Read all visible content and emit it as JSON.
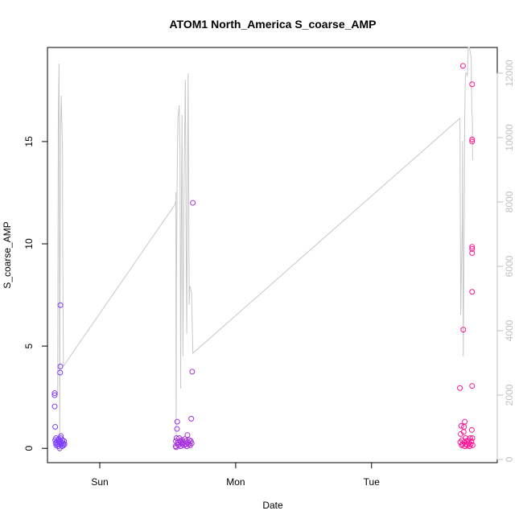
{
  "chart_data": {
    "type": "scatter",
    "title": "ATOM1 North_America S_coarse_AMP",
    "xlabel": "Date",
    "ylabel": "S_coarse_AMP",
    "x_tick_labels": [
      "Sun",
      "Mon",
      "Tue"
    ],
    "x_ticks_days": [
      1,
      2,
      3
    ],
    "xlim_days": [
      0.615,
      3.925
    ],
    "ylim": [
      -0.7,
      19.6
    ],
    "yticks": [
      0,
      5,
      10,
      15
    ],
    "y2lim": [
      -100,
      12800
    ],
    "y2ticks": [
      0,
      2000,
      4000,
      6000,
      8000,
      10000,
      12000
    ],
    "grid": false,
    "legend": "none",
    "colors": {
      "points_start": "#7f3fff",
      "points_end": "#ff1493",
      "line": "#c8c8c8",
      "secondary_axis": "#c0c0c0",
      "primary_axis": "#000000"
    },
    "points": [
      [
        0.668,
        2.6
      ],
      [
        0.668,
        2.7
      ],
      [
        0.668,
        2.05
      ],
      [
        0.672,
        1.05
      ],
      [
        0.672,
        0.4
      ],
      [
        0.675,
        0.25
      ],
      [
        0.678,
        0.5
      ],
      [
        0.68,
        0.15
      ],
      [
        0.685,
        0.3
      ],
      [
        0.688,
        0.2
      ],
      [
        0.692,
        0.4
      ],
      [
        0.695,
        0.1
      ],
      [
        0.698,
        0.45
      ],
      [
        0.7,
        0.3
      ],
      [
        0.702,
        0.2
      ],
      [
        0.705,
        0.0
      ],
      [
        0.708,
        3.7
      ],
      [
        0.708,
        0.35
      ],
      [
        0.71,
        4.0
      ],
      [
        0.71,
        7.0
      ],
      [
        0.712,
        0.5
      ],
      [
        0.714,
        0.6
      ],
      [
        0.716,
        0.2
      ],
      [
        0.72,
        0.3
      ],
      [
        0.723,
        0.1
      ],
      [
        0.726,
        0.4
      ],
      [
        0.73,
        0.25
      ],
      [
        0.733,
        0.15
      ],
      [
        0.737,
        0.35
      ],
      [
        0.74,
        0.2
      ],
      [
        1.558,
        0.1
      ],
      [
        1.56,
        0.35
      ],
      [
        1.562,
        0.05
      ],
      [
        1.565,
        0.5
      ],
      [
        1.568,
        0.95
      ],
      [
        1.57,
        1.3
      ],
      [
        1.573,
        0.2
      ],
      [
        1.576,
        0.3
      ],
      [
        1.58,
        0.15
      ],
      [
        1.585,
        0.5
      ],
      [
        1.59,
        0.35
      ],
      [
        1.595,
        0.1
      ],
      [
        1.6,
        0.25
      ],
      [
        1.605,
        0.4
      ],
      [
        1.61,
        0.2
      ],
      [
        1.615,
        0.3
      ],
      [
        1.62,
        0.15
      ],
      [
        1.625,
        0.45
      ],
      [
        1.63,
        0.35
      ],
      [
        1.635,
        0.2
      ],
      [
        1.64,
        0.1
      ],
      [
        1.645,
        0.65
      ],
      [
        1.65,
        0.3
      ],
      [
        1.655,
        0.2
      ],
      [
        1.66,
        0.4
      ],
      [
        1.665,
        0.15
      ],
      [
        1.67,
        0.35
      ],
      [
        1.673,
        1.45
      ],
      [
        1.676,
        0.25
      ],
      [
        1.68,
        3.75
      ],
      [
        1.685,
        12.0
      ],
      [
        3.65,
        2.95
      ],
      [
        3.653,
        0.3
      ],
      [
        3.656,
        0.7
      ],
      [
        3.66,
        1.1
      ],
      [
        3.663,
        0.15
      ],
      [
        3.666,
        0.4
      ],
      [
        3.67,
        0.2
      ],
      [
        3.673,
        18.7
      ],
      [
        3.675,
        5.8
      ],
      [
        3.678,
        0.8
      ],
      [
        3.68,
        1.05
      ],
      [
        3.683,
        0.3
      ],
      [
        3.686,
        1.3
      ],
      [
        3.689,
        0.1
      ],
      [
        3.692,
        0.5
      ],
      [
        3.695,
        0.2
      ],
      [
        3.7,
        0.35
      ],
      [
        3.705,
        0.15
      ],
      [
        3.71,
        0.4
      ],
      [
        3.715,
        0.25
      ],
      [
        3.72,
        0.1
      ],
      [
        3.725,
        0.5
      ],
      [
        3.73,
        0.2
      ],
      [
        3.735,
        0.35
      ],
      [
        3.738,
        0.9
      ],
      [
        3.74,
        17.8
      ],
      [
        3.74,
        15.1
      ],
      [
        3.74,
        15.0
      ],
      [
        3.74,
        9.85
      ],
      [
        3.74,
        9.75
      ],
      [
        3.74,
        9.55
      ],
      [
        3.74,
        7.65
      ],
      [
        3.74,
        3.05
      ],
      [
        3.742,
        0.5
      ],
      [
        3.744,
        0.15
      ]
    ],
    "secondary_series": [
      [
        0.69,
        2000
      ],
      [
        0.695,
        10800
      ],
      [
        0.7,
        12300
      ],
      [
        0.702,
        8000
      ],
      [
        0.705,
        250
      ],
      [
        0.708,
        6000
      ],
      [
        0.712,
        10500
      ],
      [
        0.716,
        11300
      ],
      [
        0.72,
        10600
      ],
      [
        0.725,
        9900
      ],
      [
        0.728,
        6000
      ],
      [
        0.732,
        2900
      ],
      [
        1.55,
        7900
      ],
      [
        1.557,
        8000
      ],
      [
        1.56,
        8000
      ],
      [
        1.56,
        8300
      ],
      [
        1.562,
        600
      ],
      [
        1.565,
        6000
      ],
      [
        1.57,
        9000
      ],
      [
        1.575,
        10600
      ],
      [
        1.585,
        11000
      ],
      [
        1.59,
        9500
      ],
      [
        1.595,
        2200
      ],
      [
        1.6,
        7000
      ],
      [
        1.605,
        10700
      ],
      [
        1.608,
        7000
      ],
      [
        1.612,
        3200
      ],
      [
        1.62,
        8500
      ],
      [
        1.63,
        11800
      ],
      [
        1.635,
        7000
      ],
      [
        1.64,
        3900
      ],
      [
        1.645,
        8000
      ],
      [
        1.65,
        12000
      ],
      [
        1.655,
        8000
      ],
      [
        1.658,
        4800
      ],
      [
        1.662,
        5400
      ],
      [
        1.675,
        5200
      ],
      [
        1.685,
        3300
      ],
      [
        3.65,
        10600
      ],
      [
        3.656,
        4500
      ],
      [
        3.66,
        5500
      ],
      [
        3.668,
        7500
      ],
      [
        3.67,
        9900
      ],
      [
        3.672,
        5900
      ],
      [
        3.675,
        3200
      ],
      [
        3.678,
        5200
      ],
      [
        3.682,
        7800
      ],
      [
        3.685,
        10500
      ],
      [
        3.69,
        11800
      ],
      [
        3.693,
        12000
      ],
      [
        3.7,
        12000
      ],
      [
        3.705,
        11900
      ],
      [
        3.712,
        12800
      ],
      [
        3.72,
        12800
      ],
      [
        3.728,
        12600
      ],
      [
        3.733,
        12500
      ],
      [
        3.738,
        10800
      ],
      [
        3.742,
        10600
      ],
      [
        3.744,
        9300
      ]
    ]
  }
}
